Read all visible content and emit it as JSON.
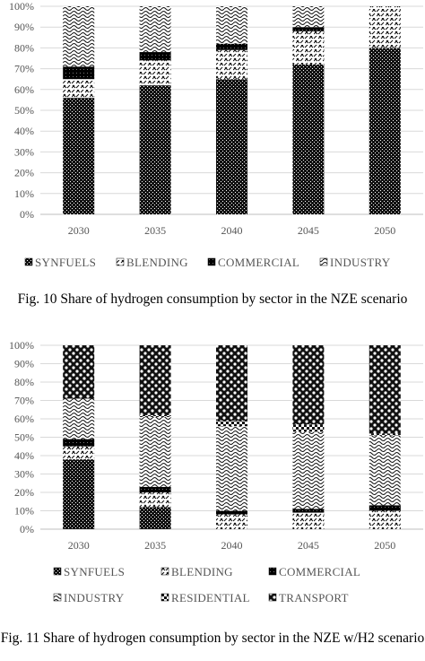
{
  "chart_data": [
    {
      "type": "bar",
      "stacked": true,
      "categories": [
        "2030",
        "2035",
        "2040",
        "2045",
        "2050"
      ],
      "y_ticks": [
        "0%",
        "10%",
        "20%",
        "30%",
        "40%",
        "50%",
        "60%",
        "70%",
        "80%",
        "90%",
        "100%"
      ],
      "ylim": [
        0,
        100
      ],
      "grid": true,
      "legend_position": "bottom",
      "series": [
        {
          "name": "SYNFUELS",
          "values": [
            56,
            62,
            65,
            72,
            80
          ]
        },
        {
          "name": "BLENDING",
          "values": [
            9,
            12,
            14,
            16,
            20
          ]
        },
        {
          "name": "COMMERCIAL",
          "values": [
            6,
            4,
            3,
            2,
            0
          ]
        },
        {
          "name": "INDUSTRY",
          "values": [
            29,
            22,
            18,
            10,
            0
          ]
        }
      ]
    },
    {
      "type": "bar",
      "stacked": true,
      "categories": [
        "2030",
        "2035",
        "2040",
        "2045",
        "2050"
      ],
      "y_ticks": [
        "0%",
        "10%",
        "20%",
        "30%",
        "40%",
        "50%",
        "60%",
        "70%",
        "80%",
        "90%",
        "100%"
      ],
      "ylim": [
        0,
        100
      ],
      "grid": true,
      "legend_position": "bottom",
      "series": [
        {
          "name": "SYNFUELS",
          "values": [
            38,
            12,
            0,
            0,
            0
          ]
        },
        {
          "name": "BLENDING",
          "values": [
            7,
            8,
            8,
            9,
            10
          ]
        },
        {
          "name": "COMMERCIAL",
          "values": [
            4,
            3,
            2,
            2,
            3
          ]
        },
        {
          "name": "INDUSTRY",
          "values": [
            22,
            38,
            46,
            42,
            38
          ]
        },
        {
          "name": "RESIDENTIAL",
          "values": [
            0,
            1,
            3,
            4,
            1
          ]
        },
        {
          "name": "TRANSPORT",
          "values": [
            29,
            38,
            41,
            43,
            48
          ]
        }
      ]
    }
  ],
  "captions": {
    "fig10": "Fig. 10 Share of hydrogen consumption by sector in the NZE scenario",
    "fig11": "Fig. 11 Share of hydrogen consumption by sector in the NZE w/H2 scenario"
  },
  "patterns": {
    "SYNFUELS": "pat-synfuels",
    "BLENDING": "pat-blending",
    "COMMERCIAL": "pat-commercial",
    "INDUSTRY": "pat-industry",
    "RESIDENTIAL": "pat-residential",
    "TRANSPORT": "pat-transport"
  }
}
